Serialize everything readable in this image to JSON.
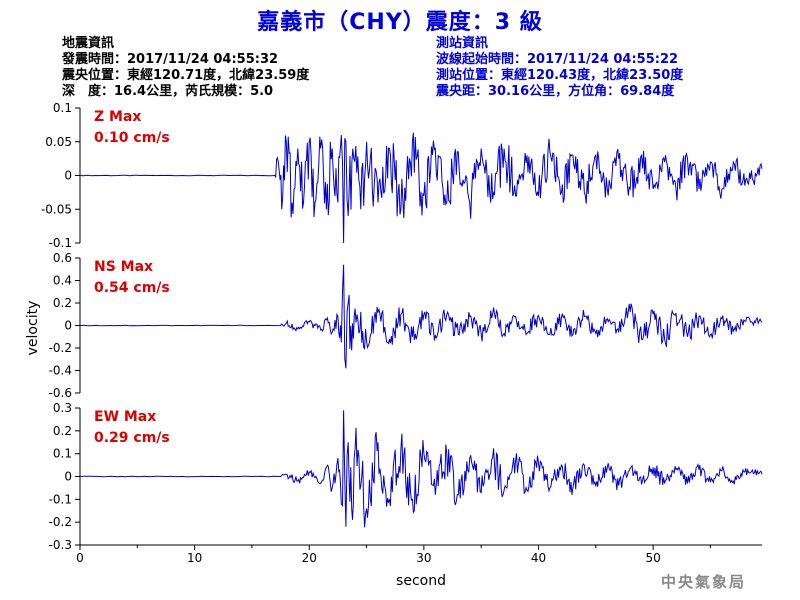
{
  "title": "嘉義市（CHY）震度：3 級",
  "quake_info": {
    "heading": "地震資訊",
    "origin_time": "發震時間：2017/11/24 04:55:32",
    "epicenter": "震央位置：東經120.71度，北緯23.59度",
    "depth_magnitude": "深　度：16.4公里，芮氏規模：5.0"
  },
  "station_info": {
    "heading": "測站資訊",
    "wave_start": "波線起始時間：2017/11/24 04:55:22",
    "location": "測站位置：東經120.43度，北緯23.50度",
    "distance": "震央距：30.16公里，方位角：69.84度"
  },
  "agency": "中央氣象局",
  "colors": {
    "trace": "#0000cc",
    "peak_label": "#dd0000",
    "title": "#0000dd"
  },
  "chart_data": {
    "type": "line",
    "xlabel": "second",
    "ylabel": "velocity",
    "xlim": [
      0,
      59.5
    ],
    "xticks": [
      "0",
      "10",
      "20",
      "30",
      "40",
      "50"
    ],
    "panels": [
      {
        "name": "Z",
        "peak_label": "Z Max",
        "peak_value": "0.10 cm/s",
        "ylim": [
          -0.1,
          0.1
        ],
        "yticks": [
          "0.1",
          "0.05",
          "0",
          "-0.05",
          "-0.1"
        ],
        "x": [
          0,
          17,
          17.3,
          17.6,
          18,
          18.5,
          19,
          19.5,
          20,
          20.5,
          21,
          21.5,
          22,
          22.5,
          22.8,
          23,
          23.2,
          23.4,
          23.8,
          24.5,
          25,
          26,
          27,
          28,
          29,
          30,
          31,
          32,
          33,
          34,
          35,
          36,
          37,
          38,
          39,
          40,
          41,
          42,
          43,
          44,
          45,
          46,
          47,
          48,
          49,
          50,
          51,
          52,
          53,
          54,
          55,
          56,
          57,
          58,
          59.5
        ],
        "y": [
          0,
          0,
          0.02,
          -0.05,
          0.05,
          -0.04,
          0.04,
          -0.04,
          0.05,
          -0.04,
          0.04,
          -0.05,
          0.04,
          -0.04,
          0.06,
          -0.1,
          0.05,
          -0.06,
          0.04,
          -0.05,
          0.05,
          -0.04,
          0.04,
          -0.05,
          0.05,
          -0.03,
          0.04,
          -0.04,
          0.035,
          -0.04,
          0.04,
          -0.035,
          0.04,
          -0.03,
          0.03,
          -0.03,
          0.035,
          -0.025,
          0.03,
          -0.025,
          0.03,
          -0.02,
          0.025,
          -0.02,
          0.03,
          -0.02,
          0.02,
          -0.02,
          0.025,
          -0.02,
          0.02,
          -0.02,
          0.02,
          -0.015,
          0.01
        ]
      },
      {
        "name": "NS",
        "peak_label": "NS Max",
        "peak_value": "0.54 cm/s",
        "ylim": [
          -0.6,
          0.6
        ],
        "yticks": [
          "0.6",
          "0.4",
          "0.2",
          "0",
          "-0.2",
          "-0.4",
          "-0.6"
        ],
        "x": [
          0,
          17.5,
          18,
          19,
          20,
          21,
          21.5,
          22,
          22.5,
          22.8,
          23,
          23.2,
          23.4,
          23.7,
          24,
          25,
          26,
          27,
          28,
          29,
          30,
          31,
          32,
          33,
          34,
          35,
          36,
          37,
          38,
          39,
          40,
          41,
          42,
          43,
          44,
          45,
          46,
          47,
          48,
          49,
          50,
          51,
          52,
          53,
          54,
          55,
          56,
          57,
          58,
          59.5
        ],
        "y": [
          0,
          0,
          0.02,
          -0.03,
          0.03,
          -0.04,
          0.05,
          -0.06,
          0.08,
          -0.15,
          0.54,
          -0.38,
          0.2,
          -0.22,
          0.15,
          -0.14,
          0.12,
          -0.12,
          0.1,
          -0.1,
          0.1,
          -0.09,
          0.1,
          -0.08,
          0.08,
          -0.08,
          0.1,
          -0.07,
          0.08,
          -0.07,
          0.09,
          -0.08,
          0.07,
          -0.08,
          0.08,
          -0.07,
          0.06,
          -0.06,
          0.12,
          -0.12,
          0.1,
          -0.12,
          0.11,
          -0.1,
          0.08,
          -0.08,
          0.06,
          -0.05,
          0.04,
          0.03
        ]
      },
      {
        "name": "EW",
        "peak_label": "EW Max",
        "peak_value": "0.29 cm/s",
        "ylim": [
          -0.3,
          0.3
        ],
        "yticks": [
          "0.3",
          "0.2",
          "0.1",
          "0",
          "-0.1",
          "-0.2",
          "-0.3"
        ],
        "x": [
          0,
          17.5,
          18,
          19,
          20,
          21,
          21.5,
          22,
          22.5,
          22.8,
          23,
          23.2,
          23.4,
          23.7,
          24,
          25,
          26,
          27,
          28,
          29,
          30,
          31,
          32,
          33,
          34,
          35,
          36,
          37,
          38,
          39,
          40,
          41,
          42,
          43,
          44,
          45,
          46,
          47,
          48,
          49,
          50,
          51,
          52,
          53,
          54,
          55,
          56,
          57,
          58,
          59.5
        ],
        "y": [
          0,
          0,
          0.01,
          -0.02,
          0.02,
          -0.03,
          0.04,
          -0.05,
          0.08,
          -0.12,
          0.29,
          -0.22,
          0.15,
          -0.14,
          0.12,
          -0.14,
          0.15,
          -0.1,
          0.12,
          -0.1,
          0.1,
          -0.08,
          0.1,
          -0.08,
          0.08,
          -0.07,
          0.08,
          -0.06,
          0.07,
          -0.06,
          0.06,
          -0.05,
          0.05,
          -0.05,
          0.05,
          -0.04,
          0.04,
          -0.04,
          0.035,
          -0.035,
          0.04,
          -0.03,
          0.03,
          -0.03,
          0.03,
          -0.025,
          0.025,
          -0.02,
          0.02,
          0.01
        ]
      }
    ]
  }
}
